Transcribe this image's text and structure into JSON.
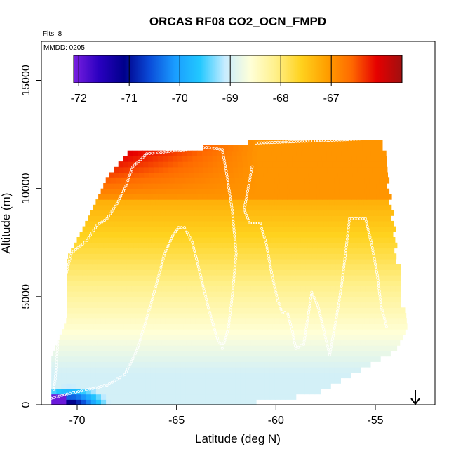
{
  "chart_data": {
    "type": "heatmap",
    "title": "ORCAS RF08 CO2_OCN_FMPD",
    "annotations": {
      "flights": "Flts: 8",
      "date": "MMDD: 0205"
    },
    "xlabel": "Latitude (deg N)",
    "ylabel": "Altitude (m)",
    "xlim": [
      -71.8,
      -52.0
    ],
    "ylim": [
      0,
      16800
    ],
    "x_ticks": [
      -70,
      -65,
      -60,
      -55
    ],
    "x_tick_labels": [
      "-70",
      "-65",
      "-60",
      "-55"
    ],
    "y_ticks": [
      0,
      5000,
      10000,
      15000
    ],
    "y_tick_labels": [
      "0",
      "5000",
      "10000",
      "15000"
    ],
    "colorbar": {
      "min": -72.1,
      "max": -65.6,
      "ticks": [
        -72,
        -71,
        -70,
        -69,
        -68,
        -67
      ],
      "tick_labels": [
        "-72",
        "-71",
        "-70",
        "-69",
        "-68",
        "-67"
      ],
      "colors": [
        "#7a1fe0",
        "#2a00c0",
        "#00008b",
        "#0a4bd8",
        "#1a9cff",
        "#22c8ff",
        "#c8ecff",
        "#ffffd8",
        "#fff08a",
        "#ffd21e",
        "#ffa000",
        "#ff6a00",
        "#e60000",
        "#a01010"
      ]
    },
    "field_top_altitude": [
      [
        -67.4,
        11700
      ],
      [
        -63.0,
        11900
      ],
      [
        -61.0,
        12200
      ],
      [
        -55.5,
        12300
      ],
      [
        -54.6,
        12200
      ],
      [
        -53.5,
        3500
      ]
    ],
    "field_edge_left": [
      [
        -67.4,
        11700
      ],
      [
        -68.5,
        10500
      ],
      [
        -69.0,
        9500
      ],
      [
        -69.8,
        8000
      ],
      [
        -70.5,
        6800
      ],
      [
        -70.5,
        4000
      ],
      [
        -71.3,
        2200
      ],
      [
        -71.3,
        0
      ]
    ],
    "field_edge_right": [
      [
        -54.6,
        12200
      ],
      [
        -54.0,
        10500
      ],
      [
        -53.7,
        8500
      ],
      [
        -53.6,
        6500
      ],
      [
        -53.5,
        4500
      ],
      [
        -53.4,
        3500
      ],
      [
        -54.0,
        2500
      ],
      [
        -56.0,
        1500
      ],
      [
        -58.0,
        500
      ],
      [
        -62.0,
        0
      ]
    ],
    "flight_track": [
      [
        -71.3,
        300
      ],
      [
        -70.5,
        500
      ],
      [
        -69.5,
        700
      ],
      [
        -68.5,
        900
      ],
      [
        -67.6,
        1400
      ],
      [
        -67.0,
        2500
      ],
      [
        -66.5,
        4000
      ],
      [
        -66.0,
        5600
      ],
      [
        -65.6,
        7000
      ],
      [
        -65.2,
        7800
      ],
      [
        -64.9,
        8200
      ],
      [
        -64.6,
        8200
      ],
      [
        -64.2,
        7500
      ],
      [
        -63.8,
        6000
      ],
      [
        -63.4,
        4500
      ],
      [
        -63.0,
        3200
      ],
      [
        -62.7,
        2600
      ],
      [
        -62.4,
        3500
      ],
      [
        -62.2,
        5000
      ],
      [
        -62.0,
        7000
      ],
      [
        -62.2,
        9000
      ],
      [
        -62.5,
        10800
      ],
      [
        -62.7,
        11800
      ],
      [
        -63.5,
        11900
      ],
      [
        -64.5,
        11800
      ],
      [
        -65.5,
        11700
      ],
      [
        -66.5,
        11600
      ],
      [
        -67.2,
        11000
      ],
      [
        -67.6,
        10000
      ],
      [
        -68.0,
        9300
      ],
      [
        -68.5,
        8600
      ],
      [
        -69.0,
        8300
      ],
      [
        -69.5,
        7600
      ],
      [
        -70.3,
        7000
      ],
      [
        -70.7,
        5500
      ],
      [
        -70.9,
        4100
      ],
      [
        -71.0,
        2500
      ],
      [
        -71.1,
        1200
      ],
      [
        -71.2,
        600
      ],
      [
        -61.0,
        12100
      ],
      [
        -59.5,
        12150
      ],
      [
        -58.0,
        12200
      ],
      [
        -56.5,
        12250
      ],
      [
        -55.5,
        12300
      ],
      [
        -61.2,
        11000
      ],
      [
        -61.4,
        10000
      ],
      [
        -61.6,
        9000
      ],
      [
        -61.3,
        8400
      ],
      [
        -60.8,
        8400
      ],
      [
        -60.5,
        7500
      ],
      [
        -60.2,
        6000
      ],
      [
        -59.9,
        4800
      ],
      [
        -59.7,
        4300
      ],
      [
        -59.4,
        4200
      ],
      [
        -59.2,
        3500
      ],
      [
        -59.0,
        2600
      ],
      [
        -58.6,
        2800
      ],
      [
        -58.4,
        4000
      ],
      [
        -58.2,
        5200
      ],
      [
        -57.9,
        4600
      ],
      [
        -57.6,
        3500
      ],
      [
        -57.3,
        2300
      ],
      [
        -57.0,
        3800
      ],
      [
        -56.7,
        5500
      ],
      [
        -56.5,
        7000
      ],
      [
        -56.3,
        8600
      ],
      [
        -55.5,
        8600
      ],
      [
        -55.2,
        7500
      ],
      [
        -54.9,
        6000
      ],
      [
        -54.7,
        4500
      ],
      [
        -54.4,
        3500
      ]
    ]
  }
}
